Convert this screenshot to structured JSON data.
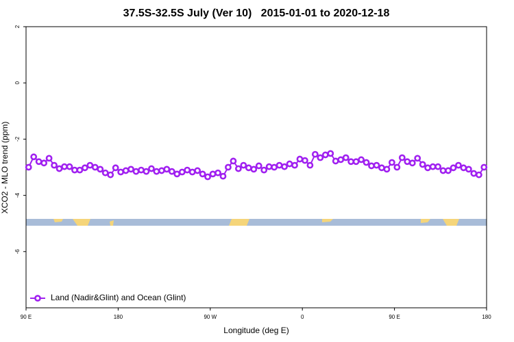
{
  "chart_data": {
    "type": "line",
    "title": "37.5S-32.5S July (Ver 10)   2015-01-01 to 2020-12-18",
    "x_label": "Longitude (deg E)",
    "y_label": "XCO2 - MLO trend (ppm)",
    "xlim": [
      90,
      540
    ],
    "ylim": [
      -8,
      2
    ],
    "xticks": [
      {
        "value": 90,
        "label": "90 E"
      },
      180,
      {
        "value": 270,
        "label": "90 W"
      },
      {
        "value": 360,
        "label": "0"
      },
      {
        "value": 450,
        "label": "90 E"
      },
      {
        "value": 540,
        "label": "180"
      }
    ],
    "yticks": [
      2,
      0,
      -2,
      -4,
      -6
    ],
    "legend": "bottomleft",
    "x": [
      92.5,
      97.5,
      102.5,
      107.5,
      112.5,
      117.5,
      122.5,
      127.5,
      132.5,
      137.5,
      142.5,
      147.5,
      152.5,
      157.5,
      162.5,
      167.5,
      172.5,
      177.5,
      182.5,
      187.5,
      192.5,
      197.5,
      202.5,
      207.5,
      212.5,
      217.5,
      222.5,
      227.5,
      232.5,
      237.5,
      242.5,
      247.5,
      252.5,
      257.5,
      262.5,
      267.5,
      272.5,
      277.5,
      282.5,
      287.5,
      292.5,
      297.5,
      302.5,
      307.5,
      312.5,
      317.5,
      322.5,
      327.5,
      332.5,
      337.5,
      342.5,
      347.5,
      352.5,
      357.5,
      362.5,
      367.5,
      372.5,
      377.5,
      382.5,
      387.5,
      392.5,
      397.5,
      402.5,
      407.5,
      412.5,
      417.5,
      422.5,
      427.5,
      432.5,
      437.5,
      442.5,
      447.5,
      452.5,
      457.5,
      462.5,
      467.5,
      472.5,
      477.5,
      482.5,
      487.5,
      492.5,
      497.5,
      502.5,
      507.5,
      512.5,
      517.5,
      522.5,
      527.5,
      532.5,
      537.5
    ],
    "series": [
      {
        "name": "Land (Nadir&Glint) and Ocean (Glint)",
        "color": "#a020f0",
        "values": [
          -3.0,
          -2.63,
          -2.8,
          -2.85,
          -2.68,
          -2.93,
          -3.05,
          -2.98,
          -2.98,
          -3.1,
          -3.1,
          -3.02,
          -2.93,
          -3.0,
          -3.07,
          -3.2,
          -3.27,
          -3.02,
          -3.17,
          -3.12,
          -3.07,
          -3.15,
          -3.1,
          -3.15,
          -3.05,
          -3.15,
          -3.12,
          -3.07,
          -3.15,
          -3.24,
          -3.17,
          -3.1,
          -3.17,
          -3.12,
          -3.24,
          -3.34,
          -3.24,
          -3.2,
          -3.32,
          -3.0,
          -2.78,
          -3.05,
          -2.93,
          -3.02,
          -3.07,
          -2.95,
          -3.1,
          -2.98,
          -3.0,
          -2.93,
          -2.98,
          -2.88,
          -2.93,
          -2.71,
          -2.76,
          -2.93,
          -2.54,
          -2.66,
          -2.56,
          -2.51,
          -2.78,
          -2.73,
          -2.66,
          -2.8,
          -2.8,
          -2.73,
          -2.83,
          -2.95,
          -2.93,
          -3.02,
          -3.07,
          -2.83,
          -3.0,
          -2.66,
          -2.8,
          -2.85,
          -2.68,
          -2.9,
          -3.02,
          -2.98,
          -2.98,
          -3.12,
          -3.12,
          -3.02,
          -2.93,
          -3.02,
          -3.07,
          -3.22,
          -3.27,
          -3.0
        ]
      }
    ]
  }
}
